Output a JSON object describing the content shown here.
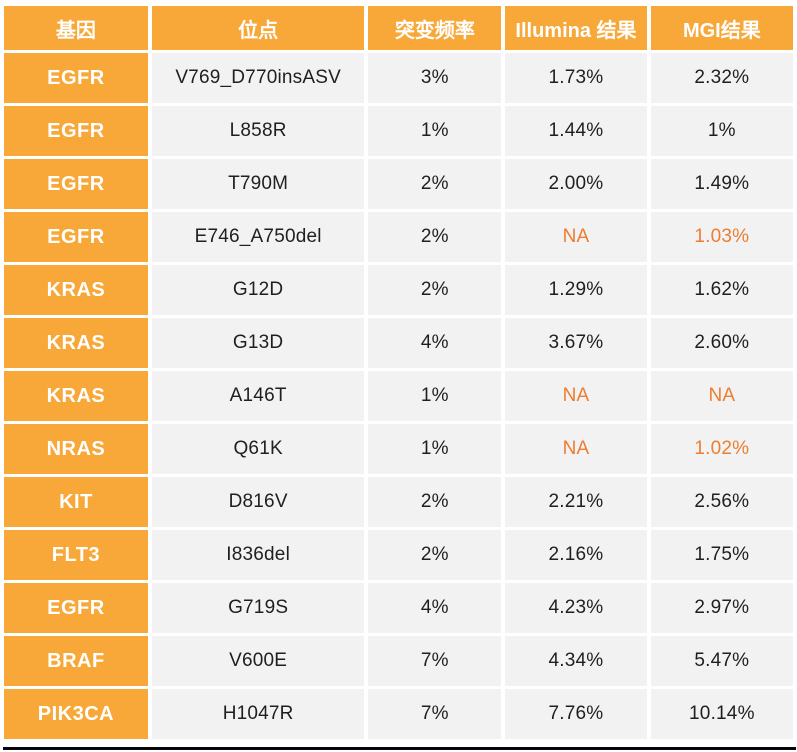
{
  "colors": {
    "accent_orange": "#F8A838",
    "highlight_orange": "#ED7D31",
    "cell_background": "#F2F2F2",
    "body_text": "#1F1F1F",
    "header_text": "#FFFFFF",
    "bottom_line": "#06060C"
  },
  "table": {
    "columns": [
      "基因",
      "位点",
      "突变频率",
      "Illumina 结果",
      "MGI结果"
    ],
    "rows": [
      {
        "gene": "EGFR",
        "site": "V769_D770insASV",
        "freq": "3%",
        "illumina": "1.73%",
        "mgi": "2.32%",
        "illumina_hl": false,
        "mgi_hl": false
      },
      {
        "gene": "EGFR",
        "site": "L858R",
        "freq": "1%",
        "illumina": "1.44%",
        "mgi": "1%",
        "illumina_hl": false,
        "mgi_hl": false
      },
      {
        "gene": "EGFR",
        "site": "T790M",
        "freq": "2%",
        "illumina": "2.00%",
        "mgi": "1.49%",
        "illumina_hl": false,
        "mgi_hl": false
      },
      {
        "gene": "EGFR",
        "site": "E746_A750del",
        "freq": "2%",
        "illumina": "NA",
        "mgi": "1.03%",
        "illumina_hl": true,
        "mgi_hl": true
      },
      {
        "gene": "KRAS",
        "site": "G12D",
        "freq": "2%",
        "illumina": "1.29%",
        "mgi": "1.62%",
        "illumina_hl": false,
        "mgi_hl": false
      },
      {
        "gene": "KRAS",
        "site": "G13D",
        "freq": "4%",
        "illumina": "3.67%",
        "mgi": "2.60%",
        "illumina_hl": false,
        "mgi_hl": false
      },
      {
        "gene": "KRAS",
        "site": "A146T",
        "freq": "1%",
        "illumina": "NA",
        "mgi": "NA",
        "illumina_hl": true,
        "mgi_hl": true
      },
      {
        "gene": "NRAS",
        "site": "Q61K",
        "freq": "1%",
        "illumina": "NA",
        "mgi": "1.02%",
        "illumina_hl": true,
        "mgi_hl": true
      },
      {
        "gene": "KIT",
        "site": "D816V",
        "freq": "2%",
        "illumina": "2.21%",
        "mgi": "2.56%",
        "illumina_hl": false,
        "mgi_hl": false
      },
      {
        "gene": "FLT3",
        "site": "I836del",
        "freq": "2%",
        "illumina": "2.16%",
        "mgi": "1.75%",
        "illumina_hl": false,
        "mgi_hl": false
      },
      {
        "gene": "EGFR",
        "site": "G719S",
        "freq": "4%",
        "illumina": "4.23%",
        "mgi": "2.97%",
        "illumina_hl": false,
        "mgi_hl": false
      },
      {
        "gene": "BRAF",
        "site": "V600E",
        "freq": "7%",
        "illumina": "4.34%",
        "mgi": "5.47%",
        "illumina_hl": false,
        "mgi_hl": false
      },
      {
        "gene": "PIK3CA",
        "site": "H1047R",
        "freq": "7%",
        "illumina": "7.76%",
        "mgi": "10.14%",
        "illumina_hl": false,
        "mgi_hl": false
      }
    ]
  },
  "chart_data": {
    "type": "table",
    "columns": [
      "基因",
      "位点",
      "突变频率",
      "Illumina 结果",
      "MGI结果"
    ],
    "rows": [
      [
        "EGFR",
        "V769_D770insASV",
        "3%",
        "1.73%",
        "2.32%"
      ],
      [
        "EGFR",
        "L858R",
        "1%",
        "1.44%",
        "1%"
      ],
      [
        "EGFR",
        "T790M",
        "2%",
        "2.00%",
        "1.49%"
      ],
      [
        "EGFR",
        "E746_A750del",
        "2%",
        "NA",
        "1.03%"
      ],
      [
        "KRAS",
        "G12D",
        "2%",
        "1.29%",
        "1.62%"
      ],
      [
        "KRAS",
        "G13D",
        "4%",
        "3.67%",
        "2.60%"
      ],
      [
        "KRAS",
        "A146T",
        "1%",
        "NA",
        "NA"
      ],
      [
        "NRAS",
        "Q61K",
        "1%",
        "NA",
        "1.02%"
      ],
      [
        "KIT",
        "D816V",
        "2%",
        "2.21%",
        "2.56%"
      ],
      [
        "FLT3",
        "I836del",
        "2%",
        "2.16%",
        "1.75%"
      ],
      [
        "EGFR",
        "G719S",
        "4%",
        "4.23%",
        "2.97%"
      ],
      [
        "BRAF",
        "V600E",
        "7%",
        "4.34%",
        "5.47%"
      ],
      [
        "PIK3CA",
        "H1047R",
        "7%",
        "7.76%",
        "10.14%"
      ]
    ],
    "highlighted_cells_note": "NA and values 1.03%, 1.02% shown in orange (#ED7D31)",
    "legend_position": "none",
    "grid": "white gaps between light-gray cells"
  }
}
